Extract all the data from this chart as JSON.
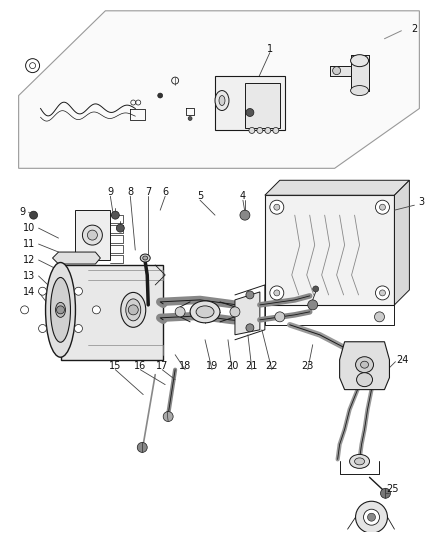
{
  "bg": "#ffffff",
  "lc": "#1a1a1a",
  "lc_gray": "#888888",
  "lc_light": "#aaaaaa",
  "fig_w": 4.38,
  "fig_h": 5.33,
  "dpi": 100,
  "label_fs": 7.0,
  "label_color": "#111111"
}
